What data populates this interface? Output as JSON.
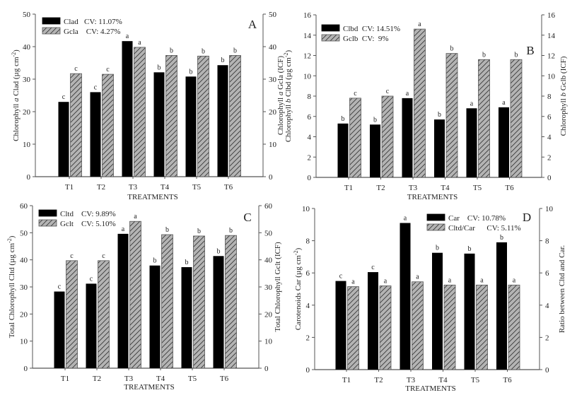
{
  "chart_data": [
    {
      "type": "bar",
      "panel_label": "A",
      "categories": [
        "T1",
        "T2",
        "T3",
        "T4",
        "T5",
        "T6"
      ],
      "xlabel": "TREATMENTS",
      "ylabel": "Chlorophyll a Clad (µg cm⁻²)",
      "ylabel_parts": [
        "Chlorophyll ",
        "a",
        " Clad (µg cm",
        "-2",
        ")"
      ],
      "ylabel_right": "Chlorophyll a Gcla (ICF)",
      "ylabel_right_parts": [
        "Chlorophyll ",
        "a",
        " Gcla (ICF)"
      ],
      "ylim": [
        0,
        50
      ],
      "yticks": [
        0,
        10,
        20,
        30,
        40,
        50
      ],
      "ylim_right": [
        0,
        50
      ],
      "yticks_right": [
        0,
        10,
        20,
        30,
        40,
        50
      ],
      "legend_position": "top-left",
      "series": [
        {
          "name": "Clad",
          "legend": "Clad   CV: 11.07%",
          "style": "solid",
          "axis": "left",
          "values": [
            23.0,
            26.0,
            41.7,
            32.1,
            30.8,
            34.3
          ],
          "letters": [
            "c",
            "c",
            "a",
            "b",
            "b",
            "b"
          ]
        },
        {
          "name": "Gcla",
          "legend": "Gcla    CV: 4.27%",
          "style": "hatched",
          "axis": "right",
          "values": [
            31.7,
            31.5,
            39.8,
            37.3,
            37.1,
            37.3
          ],
          "letters": [
            "c",
            "c",
            "a",
            "b",
            "b",
            "b"
          ]
        }
      ]
    },
    {
      "type": "bar",
      "panel_label": "B",
      "categories": [
        "T1",
        "T2",
        "T3",
        "T4",
        "T5",
        "T6"
      ],
      "xlabel": "TREATMENTS",
      "ylabel": "Chlorophyll b Clbd (µg cm⁻²)",
      "ylabel_parts": [
        "Chlorophyll ",
        "b",
        " Clbd (µg cm",
        "-2",
        ")"
      ],
      "ylabel_right": "Chlorophyll b Gclb (ICF)",
      "ylabel_right_parts": [
        "Chlorophyll ",
        "b",
        " Gclb (ICF)"
      ],
      "ylim": [
        0,
        16
      ],
      "yticks": [
        0,
        2,
        4,
        6,
        8,
        10,
        12,
        14,
        16
      ],
      "ylim_right": [
        0,
        16
      ],
      "yticks_right": [
        0,
        2,
        4,
        6,
        8,
        10,
        12,
        14,
        16
      ],
      "legend_position": "top-left",
      "series": [
        {
          "name": "Clbd",
          "legend": "Clbd  CV: 14.51%",
          "style": "solid",
          "axis": "left",
          "values": [
            5.3,
            5.2,
            7.8,
            5.7,
            6.8,
            6.9
          ],
          "letters": [
            "b",
            "b",
            "a",
            "b",
            "a",
            "a"
          ]
        },
        {
          "name": "Gclb",
          "legend": "Gclb  CV:  9%",
          "style": "hatched",
          "axis": "right",
          "values": [
            7.8,
            8.0,
            14.6,
            12.2,
            11.6,
            11.6
          ],
          "letters": [
            "c",
            "c",
            "a",
            "b",
            "b",
            "b"
          ]
        }
      ]
    },
    {
      "type": "bar",
      "panel_label": "C",
      "categories": [
        "T1",
        "T2",
        "T3",
        "T4",
        "T5",
        "T6"
      ],
      "xlabel": "TREATMENTS",
      "ylabel": "Total Chlorophyll Cltd (µg cm⁻²)",
      "ylabel_parts": [
        "Total Chlorophyll  Cltd (µg cm",
        "-2",
        ")"
      ],
      "ylabel_right": "Total Chlorophyll Gclt (ICF)",
      "ylabel_right_parts": [
        "Total Chlorophyll Gclt  (ICF)"
      ],
      "ylim": [
        0,
        60
      ],
      "yticks": [
        0,
        10,
        20,
        30,
        40,
        50,
        60
      ],
      "ylim_right": [
        0,
        60
      ],
      "yticks_right": [
        0,
        10,
        20,
        30,
        40,
        50,
        60
      ],
      "legend_position": "top-left",
      "series": [
        {
          "name": "Cltd",
          "legend": "Cltd    CV: 9.89%",
          "style": "solid",
          "axis": "left",
          "values": [
            28.3,
            31.2,
            49.6,
            37.9,
            37.3,
            41.4
          ],
          "letters": [
            "c",
            "c",
            "a",
            "b",
            "b",
            "b"
          ]
        },
        {
          "name": "Gclt",
          "legend": "Gclt    CV: 5.10%",
          "style": "hatched",
          "axis": "right",
          "values": [
            39.7,
            39.7,
            54.2,
            49.3,
            48.8,
            49.0
          ],
          "letters": [
            "c",
            "c",
            "a",
            "b",
            "b",
            "b"
          ]
        }
      ]
    },
    {
      "type": "bar",
      "panel_label": "D",
      "categories": [
        "T1",
        "T2",
        "T3",
        "T4",
        "T5",
        "T6"
      ],
      "xlabel": "TREATMENTS",
      "ylabel": "Carotenoids Car (µg cm⁻²)",
      "ylabel_parts": [
        "Carotenoids Car (µg cm",
        "-2",
        ")"
      ],
      "ylabel_right": "Ratio between Cltd and Car.",
      "ylabel_right_parts": [
        "Ratio between Cltd and Car."
      ],
      "ylim": [
        0,
        10
      ],
      "yticks": [
        0,
        2,
        4,
        6,
        8,
        10
      ],
      "ylim_right": [
        0,
        10
      ],
      "yticks_right": [
        0,
        2,
        4,
        6,
        8,
        10
      ],
      "legend_position": "top-right",
      "series": [
        {
          "name": "Car",
          "legend": "Car    CV: 10.78%",
          "style": "solid",
          "axis": "left",
          "values": [
            5.5,
            6.05,
            9.1,
            7.25,
            7.2,
            7.9
          ],
          "letters": [
            "c",
            "c",
            "a",
            "b",
            "b",
            "b"
          ]
        },
        {
          "name": "Cltd/Car",
          "legend": "Cltd/Car      CV: 5.11%",
          "style": "hatched",
          "axis": "right",
          "values": [
            5.15,
            5.2,
            5.45,
            5.25,
            5.25,
            5.25
          ],
          "letters": [
            "a",
            "a",
            "a",
            "a",
            "a",
            "a"
          ]
        }
      ]
    }
  ],
  "colors": {
    "solid_bar": "#000000",
    "hatched_fill": "#b4b4b4",
    "hatch_line": "#333333",
    "axis": "#555555",
    "text": "#222222"
  }
}
